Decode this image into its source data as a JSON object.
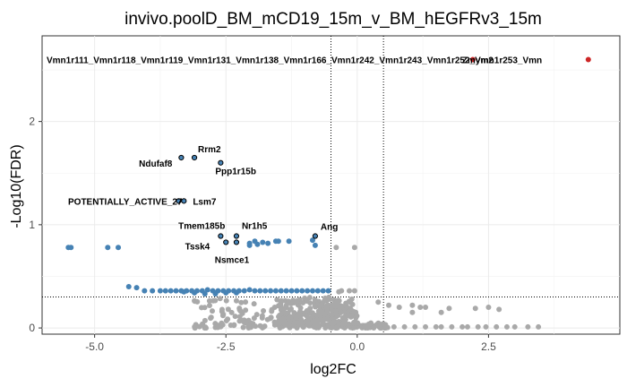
{
  "chart_data": {
    "type": "scatter",
    "title": "invivo.poolD_BM_mCD19_15m_v_BM_hEGFRv3_15m",
    "xlabel": "log2FC",
    "ylabel": "-Log10(FDR)",
    "xlim": [
      -6.0,
      5.0
    ],
    "ylim": [
      -0.06,
      2.83
    ],
    "xticks": [
      -5.0,
      -2.5,
      0.0,
      2.5
    ],
    "xtick_labels": [
      "-5.0",
      "-2.5",
      "0.0",
      "2.5"
    ],
    "yticks": [
      0,
      1,
      2
    ],
    "ytick_labels": [
      "0",
      "1",
      "2"
    ],
    "grid": true,
    "colors": {
      "down_sig": "#4682b4",
      "not_sig": "#a9a9a9",
      "up_sig": "#cd2626",
      "labeled_outline": "#000000"
    },
    "thresholds": {
      "log2fc": [
        -0.5,
        0.5
      ],
      "neg_log10_fdr": 0.3
    },
    "top_band_text": "Vmn1r111_Vmn1r118_Vmn1r119_Vmn1r131_Vmn1r138_Vmn1r166_Vmn1r242_Vmn1r243_Vmn1r252_Vmn1r253_Vmn",
    "top_band_overlap_text": "Zmym2",
    "top_band_points": [
      {
        "x": 2.2,
        "y": 2.6,
        "color": "up_sig"
      },
      {
        "x": 4.4,
        "y": 2.6,
        "color": "up_sig"
      }
    ],
    "labeled_points": [
      {
        "label": "Rrm2",
        "x": -3.1,
        "y": 1.65
      },
      {
        "label": "Ndufaf8",
        "x": -3.35,
        "y": 1.65
      },
      {
        "label": "Ppp1r15b",
        "x": -2.6,
        "y": 1.6
      },
      {
        "label": "POTENTIALLY_ACTIVE_27",
        "x": -3.4,
        "y": 1.23
      },
      {
        "label": "Lsm7",
        "x": -3.3,
        "y": 1.23
      },
      {
        "label": "Tmem185b",
        "x": -2.6,
        "y": 0.89
      },
      {
        "label": "Nr1h5",
        "x": -2.3,
        "y": 0.89
      },
      {
        "label": "Ang",
        "x": -0.8,
        "y": 0.89
      },
      {
        "label": "Tssk4",
        "x": -2.5,
        "y": 0.83
      },
      {
        "label": "Nsmce1",
        "x": -2.3,
        "y": 0.83
      }
    ],
    "blue_points": [
      [
        -5.5,
        0.78
      ],
      [
        -5.45,
        0.78
      ],
      [
        -4.75,
        0.78
      ],
      [
        -4.55,
        0.78
      ],
      [
        -2.05,
        0.82
      ],
      [
        -1.95,
        0.84
      ],
      [
        -1.8,
        0.83
      ],
      [
        -1.7,
        0.82
      ],
      [
        -1.55,
        0.84
      ],
      [
        -1.5,
        0.84
      ],
      [
        -1.3,
        0.84
      ],
      [
        -1.9,
        0.81
      ],
      [
        -2.05,
        0.8
      ],
      [
        -0.85,
        0.85
      ],
      [
        -0.8,
        0.8
      ],
      [
        -4.35,
        0.4
      ],
      [
        -4.2,
        0.39
      ],
      [
        -4.05,
        0.36
      ],
      [
        -3.9,
        0.36
      ],
      [
        -3.75,
        0.36
      ],
      [
        -3.65,
        0.36
      ],
      [
        -3.55,
        0.36
      ],
      [
        -3.45,
        0.36
      ],
      [
        -3.35,
        0.36
      ],
      [
        -3.25,
        0.36
      ],
      [
        -3.15,
        0.36
      ],
      [
        -3.05,
        0.36
      ],
      [
        -2.95,
        0.36
      ],
      [
        -2.85,
        0.37
      ],
      [
        -2.75,
        0.36
      ],
      [
        -2.65,
        0.36
      ],
      [
        -2.55,
        0.36
      ],
      [
        -2.45,
        0.36
      ],
      [
        -2.35,
        0.36
      ],
      [
        -2.25,
        0.36
      ],
      [
        -2.15,
        0.36
      ],
      [
        -2.05,
        0.37
      ],
      [
        -1.95,
        0.36
      ],
      [
        -1.85,
        0.36
      ],
      [
        -1.75,
        0.36
      ],
      [
        -1.65,
        0.36
      ],
      [
        -1.55,
        0.36
      ],
      [
        -1.45,
        0.36
      ],
      [
        -1.35,
        0.36
      ],
      [
        -1.25,
        0.36
      ],
      [
        -1.15,
        0.36
      ],
      [
        -1.05,
        0.36
      ],
      [
        -0.95,
        0.36
      ],
      [
        -0.85,
        0.36
      ],
      [
        -0.75,
        0.36
      ],
      [
        -0.65,
        0.36
      ],
      [
        -0.55,
        0.36
      ],
      [
        -3.3,
        0.35
      ],
      [
        -3.1,
        0.34
      ],
      [
        -2.9,
        0.33
      ],
      [
        -2.7,
        0.33
      ],
      [
        -2.5,
        0.34
      ],
      [
        -2.3,
        0.34
      ]
    ],
    "grey_points": [
      [
        -0.4,
        0.78
      ],
      [
        -0.05,
        0.78
      ],
      [
        -0.3,
        0.36
      ],
      [
        -0.15,
        0.36
      ],
      [
        -0.05,
        0.36
      ],
      [
        -0.35,
        0.35
      ],
      [
        0.4,
        0.25
      ],
      [
        0.6,
        0.22
      ],
      [
        0.8,
        0.2
      ],
      [
        1.05,
        0.22
      ],
      [
        1.2,
        0.2
      ],
      [
        1.3,
        0.2
      ],
      [
        1.05,
        0.15
      ],
      [
        1.6,
        0.15
      ],
      [
        1.75,
        0.19
      ],
      [
        2.25,
        0.19
      ],
      [
        2.5,
        0.2
      ],
      [
        2.7,
        0.18
      ]
    ],
    "grey_clusters": [
      {
        "x_min": -3.1,
        "x_max": -0.5,
        "y_min": 0.0,
        "y_max": 0.3,
        "count": 170
      },
      {
        "x_min": -1.5,
        "x_max": 0.0,
        "y_min": 0.02,
        "y_max": 0.28,
        "count": 260
      },
      {
        "x_min": -0.5,
        "x_max": 0.6,
        "y_min": 0.0,
        "y_max": 0.05,
        "count": 90
      }
    ],
    "grey_baseline_points": [
      [
        0.7,
        0.01
      ],
      [
        0.9,
        0.01
      ],
      [
        1.1,
        0.01
      ],
      [
        1.3,
        0.01
      ],
      [
        1.5,
        0.01
      ],
      [
        1.6,
        0.01
      ],
      [
        1.8,
        0.01
      ],
      [
        2.0,
        0.01
      ],
      [
        2.1,
        0.01
      ],
      [
        2.3,
        0.01
      ],
      [
        2.45,
        0.01
      ],
      [
        2.65,
        0.01
      ],
      [
        2.85,
        0.01
      ],
      [
        3.0,
        0.01
      ],
      [
        3.25,
        0.01
      ],
      [
        3.45,
        0.01
      ]
    ]
  }
}
